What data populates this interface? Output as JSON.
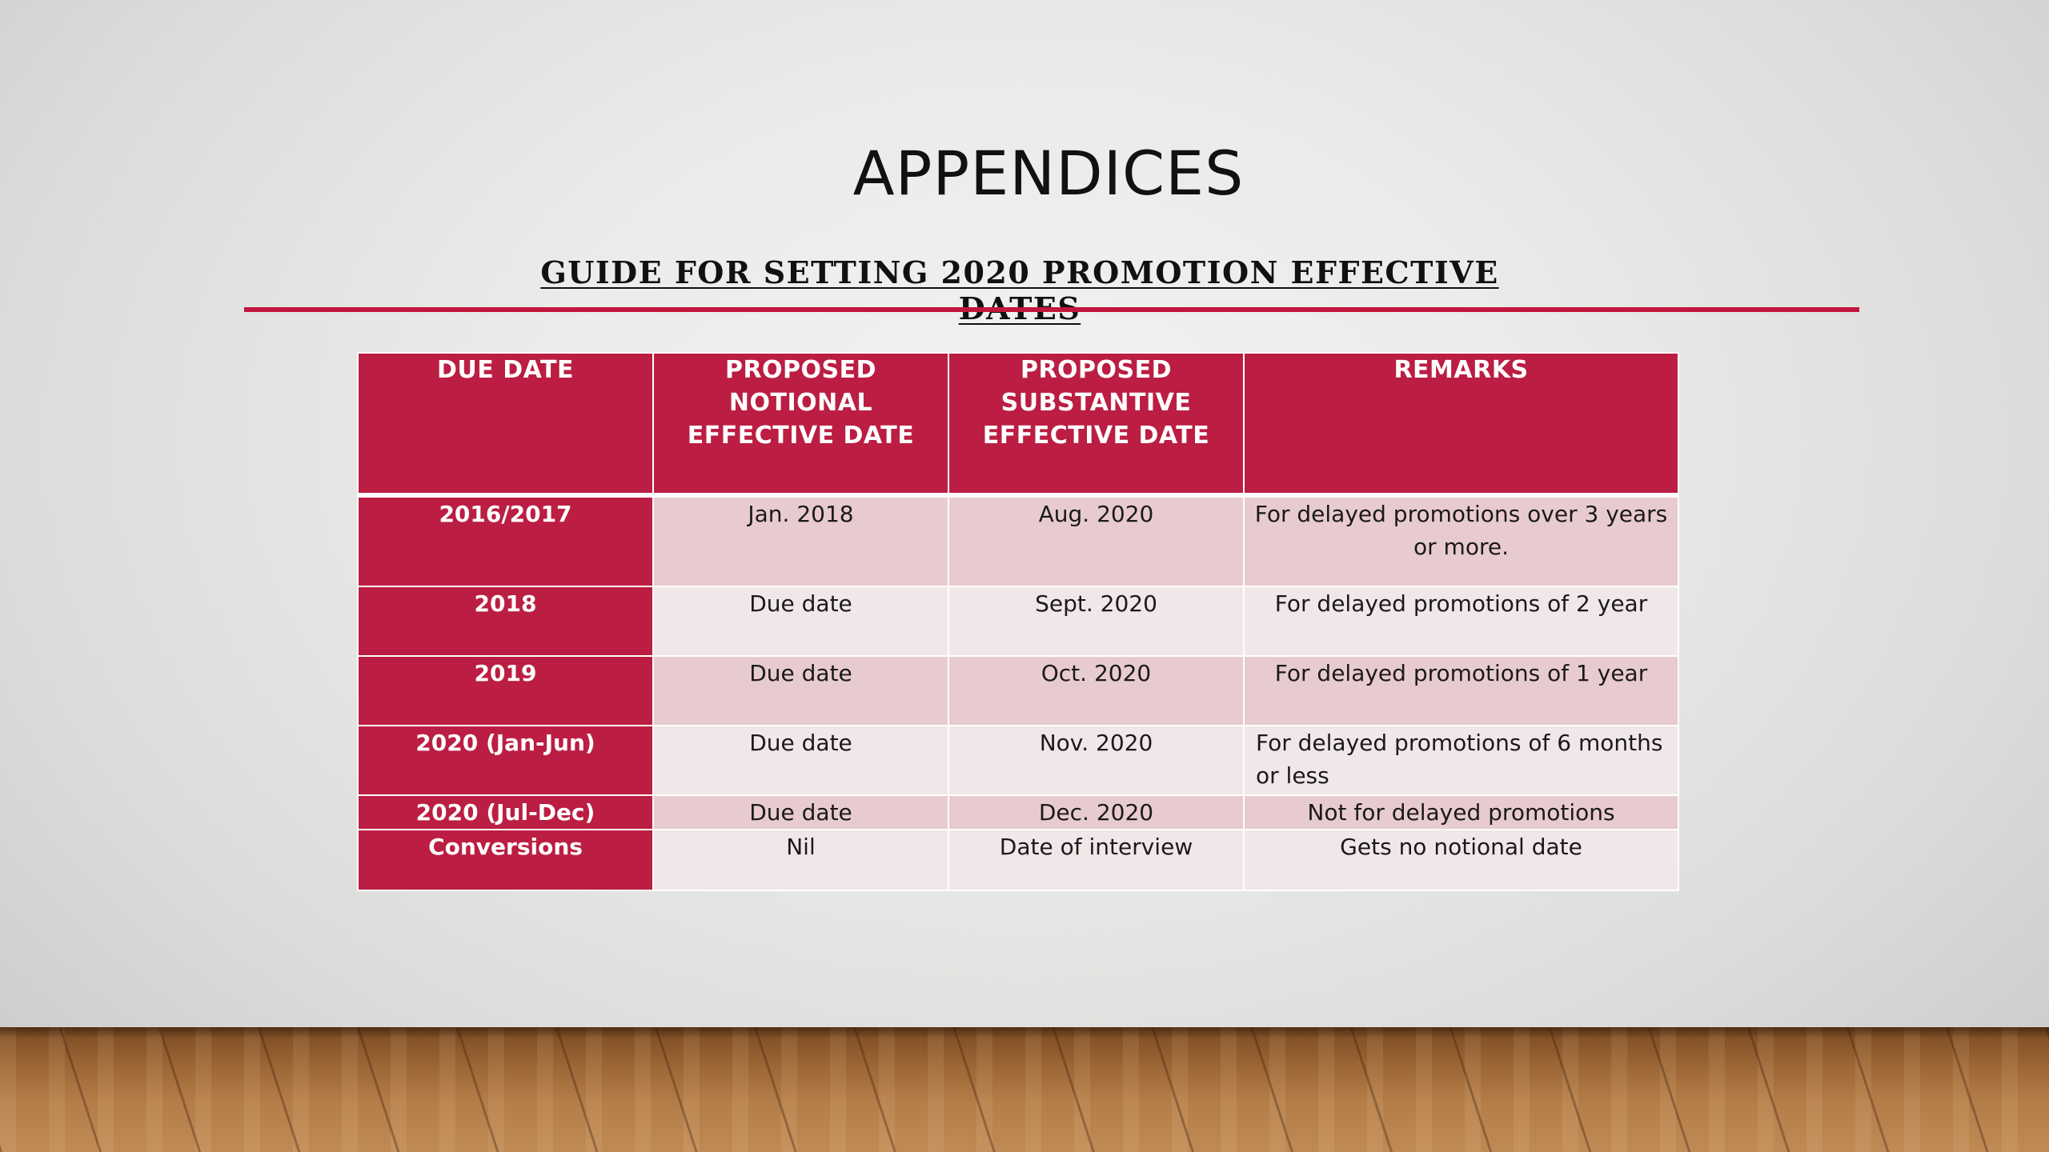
{
  "slide": {
    "title": "APPENDICES",
    "subtitle": "GUIDE FOR SETTING 2020 PROMOTION EFFECTIVE DATES",
    "accent_color": "#bb1e42"
  },
  "table": {
    "headers": [
      "DUE DATE",
      "PROPOSED NOTIONAL EFFECTIVE DATE",
      "PROPOSED SUBSTANTIVE EFFECTIVE DATE",
      "REMARKS"
    ],
    "rows": [
      [
        "2016/2017",
        "Jan. 2018",
        "Aug. 2020",
        "For delayed promotions over 3 years or more."
      ],
      [
        "2018",
        "Due date",
        "Sept. 2020",
        "For delayed promotions of 2 year"
      ],
      [
        "2019",
        "Due date",
        "Oct. 2020",
        "For delayed promotions of 1 year"
      ],
      [
        "2020 (Jan-Jun)",
        "Due date",
        "Nov. 2020",
        "For delayed promotions of 6 months or less"
      ],
      [
        "2020 (Jul-Dec)",
        "Due date",
        "Dec. 2020",
        "Not for delayed promotions"
      ],
      [
        "Conversions",
        "Nil",
        "Date of interview",
        "Gets no notional date"
      ]
    ]
  }
}
